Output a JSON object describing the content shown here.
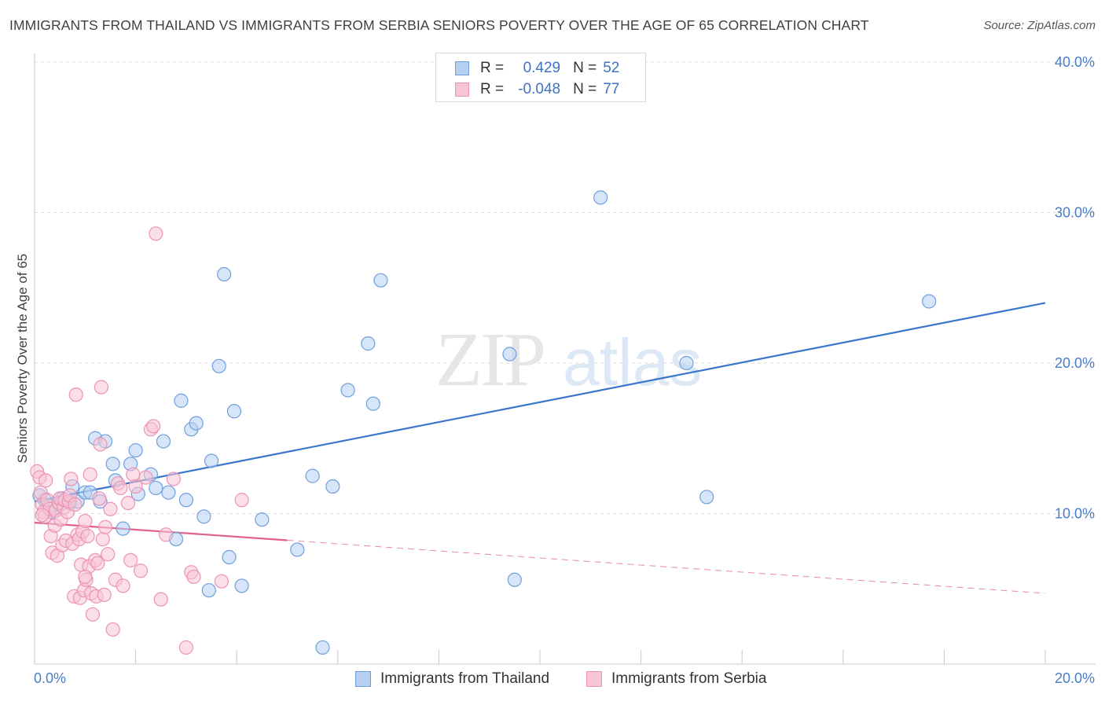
{
  "title": "IMMIGRANTS FROM THAILAND VS IMMIGRANTS FROM SERBIA SENIORS POVERTY OVER THE AGE OF 65 CORRELATION CHART",
  "source": "Source: ZipAtlas.com",
  "watermark": {
    "zip": "ZIP",
    "atlas": "atlas"
  },
  "legend": {
    "rows": [
      {
        "r_label": "R =",
        "r_value": "0.429",
        "n_label": "N =",
        "n_value": "52"
      },
      {
        "r_label": "R =",
        "r_value": "-0.048",
        "n_label": "N =",
        "n_value": "77"
      }
    ]
  },
  "colors": {
    "thailand_fill": "#b7d0f2",
    "thailand_stroke": "#6f9fdc",
    "thailand_line": "#3a76cc",
    "serbia_fill": "#f7c5d6",
    "serbia_stroke": "#ec93b2",
    "serbia_line": "#e0608e",
    "tick_label": "#4a7cc7",
    "grid": "#dcdcdc"
  },
  "chart_data": {
    "type": "scatter",
    "title": "IMMIGRANTS FROM THAILAND VS IMMIGRANTS FROM SERBIA SENIORS POVERTY OVER THE AGE OF 65 CORRELATION CHART",
    "xlabel": "",
    "ylabel": "Seniors Poverty Over the Age of 65",
    "xlim": [
      0,
      20
    ],
    "ylim": [
      0,
      40
    ],
    "x_ticks": [
      0,
      20
    ],
    "x_tick_labels": [
      "0.0%",
      "20.0%"
    ],
    "y_ticks": [
      10,
      20,
      30,
      40
    ],
    "y_tick_labels": [
      "10.0%",
      "20.0%",
      "30.0%",
      "40.0%"
    ],
    "grid": true,
    "legend_position": "top-center",
    "series": [
      {
        "name": "Immigrants from Thailand",
        "color": "#b7d0f2",
        "R": 0.429,
        "N": 52,
        "trend": {
          "x": [
            0,
            20
          ],
          "y": [
            10.8,
            24.0
          ],
          "solid_until": 20
        },
        "points": [
          {
            "x": 0.2,
            "y": 10.9
          },
          {
            "x": 0.3,
            "y": 10.5
          },
          {
            "x": 0.35,
            "y": 10.1
          },
          {
            "x": 0.5,
            "y": 10.6
          },
          {
            "x": 0.55,
            "y": 11.0
          },
          {
            "x": 0.7,
            "y": 10.7
          },
          {
            "x": 0.75,
            "y": 11.8
          },
          {
            "x": 0.85,
            "y": 10.8
          },
          {
            "x": 1.0,
            "y": 11.4
          },
          {
            "x": 1.1,
            "y": 11.4
          },
          {
            "x": 1.2,
            "y": 15.0
          },
          {
            "x": 1.3,
            "y": 10.8
          },
          {
            "x": 1.4,
            "y": 14.8
          },
          {
            "x": 1.55,
            "y": 13.3
          },
          {
            "x": 1.6,
            "y": 12.2
          },
          {
            "x": 1.75,
            "y": 9.0
          },
          {
            "x": 1.9,
            "y": 13.3
          },
          {
            "x": 2.0,
            "y": 14.2
          },
          {
            "x": 2.05,
            "y": 11.3
          },
          {
            "x": 2.3,
            "y": 12.6
          },
          {
            "x": 2.4,
            "y": 11.7
          },
          {
            "x": 2.55,
            "y": 14.8
          },
          {
            "x": 2.65,
            "y": 11.4
          },
          {
            "x": 2.8,
            "y": 8.3
          },
          {
            "x": 2.9,
            "y": 17.5
          },
          {
            "x": 3.0,
            "y": 10.9
          },
          {
            "x": 3.1,
            "y": 15.6
          },
          {
            "x": 3.2,
            "y": 16.0
          },
          {
            "x": 3.35,
            "y": 9.8
          },
          {
            "x": 3.45,
            "y": 4.9
          },
          {
            "x": 3.5,
            "y": 13.5
          },
          {
            "x": 3.65,
            "y": 19.8
          },
          {
            "x": 3.75,
            "y": 25.9
          },
          {
            "x": 3.85,
            "y": 7.1
          },
          {
            "x": 3.95,
            "y": 16.8
          },
          {
            "x": 4.1,
            "y": 5.2
          },
          {
            "x": 4.5,
            "y": 9.6
          },
          {
            "x": 5.2,
            "y": 7.6
          },
          {
            "x": 5.5,
            "y": 12.5
          },
          {
            "x": 5.7,
            "y": 1.1
          },
          {
            "x": 5.9,
            "y": 11.8
          },
          {
            "x": 6.2,
            "y": 18.2
          },
          {
            "x": 6.6,
            "y": 21.3
          },
          {
            "x": 6.7,
            "y": 17.3
          },
          {
            "x": 6.85,
            "y": 25.5
          },
          {
            "x": 9.4,
            "y": 20.6
          },
          {
            "x": 9.5,
            "y": 5.6
          },
          {
            "x": 11.2,
            "y": 31.0
          },
          {
            "x": 12.9,
            "y": 20.0
          },
          {
            "x": 13.3,
            "y": 11.1
          },
          {
            "x": 17.7,
            "y": 24.1
          },
          {
            "x": 0.1,
            "y": 11.2
          }
        ]
      },
      {
        "name": "Immigrants from Serbia",
        "color": "#f7c5d6",
        "R": -0.048,
        "N": 77,
        "trend": {
          "x": [
            0,
            20
          ],
          "y": [
            9.4,
            4.7
          ],
          "solid_until": 5
        },
        "points": [
          {
            "x": 0.05,
            "y": 12.8
          },
          {
            "x": 0.1,
            "y": 12.4
          },
          {
            "x": 0.12,
            "y": 11.4
          },
          {
            "x": 0.15,
            "y": 10.6
          },
          {
            "x": 0.18,
            "y": 10.1
          },
          {
            "x": 0.2,
            "y": 9.8
          },
          {
            "x": 0.22,
            "y": 12.2
          },
          {
            "x": 0.25,
            "y": 10.9
          },
          {
            "x": 0.3,
            "y": 10.3
          },
          {
            "x": 0.32,
            "y": 8.5
          },
          {
            "x": 0.35,
            "y": 7.4
          },
          {
            "x": 0.4,
            "y": 9.2
          },
          {
            "x": 0.42,
            "y": 10.2
          },
          {
            "x": 0.45,
            "y": 7.2
          },
          {
            "x": 0.48,
            "y": 10.7
          },
          {
            "x": 0.5,
            "y": 11.0
          },
          {
            "x": 0.52,
            "y": 9.6
          },
          {
            "x": 0.55,
            "y": 7.9
          },
          {
            "x": 0.58,
            "y": 10.4
          },
          {
            "x": 0.6,
            "y": 10.9
          },
          {
            "x": 0.62,
            "y": 8.2
          },
          {
            "x": 0.65,
            "y": 10.1
          },
          {
            "x": 0.68,
            "y": 10.8
          },
          {
            "x": 0.7,
            "y": 11.2
          },
          {
            "x": 0.72,
            "y": 12.3
          },
          {
            "x": 0.75,
            "y": 8.0
          },
          {
            "x": 0.78,
            "y": 4.5
          },
          {
            "x": 0.8,
            "y": 10.6
          },
          {
            "x": 0.82,
            "y": 17.9
          },
          {
            "x": 0.85,
            "y": 8.6
          },
          {
            "x": 0.88,
            "y": 8.3
          },
          {
            "x": 0.9,
            "y": 4.4
          },
          {
            "x": 0.92,
            "y": 6.6
          },
          {
            "x": 0.95,
            "y": 8.8
          },
          {
            "x": 0.98,
            "y": 4.9
          },
          {
            "x": 1.0,
            "y": 9.5
          },
          {
            "x": 1.02,
            "y": 5.6
          },
          {
            "x": 1.05,
            "y": 8.5
          },
          {
            "x": 1.08,
            "y": 6.5
          },
          {
            "x": 1.1,
            "y": 12.6
          },
          {
            "x": 1.12,
            "y": 4.7
          },
          {
            "x": 1.15,
            "y": 3.3
          },
          {
            "x": 1.2,
            "y": 6.9
          },
          {
            "x": 1.22,
            "y": 4.5
          },
          {
            "x": 1.25,
            "y": 6.7
          },
          {
            "x": 1.28,
            "y": 11.0
          },
          {
            "x": 1.3,
            "y": 14.6
          },
          {
            "x": 1.32,
            "y": 18.4
          },
          {
            "x": 1.35,
            "y": 8.3
          },
          {
            "x": 1.38,
            "y": 4.6
          },
          {
            "x": 1.4,
            "y": 9.1
          },
          {
            "x": 1.45,
            "y": 7.3
          },
          {
            "x": 1.5,
            "y": 10.3
          },
          {
            "x": 1.55,
            "y": 2.3
          },
          {
            "x": 1.6,
            "y": 5.6
          },
          {
            "x": 1.65,
            "y": 12.0
          },
          {
            "x": 1.7,
            "y": 11.7
          },
          {
            "x": 1.75,
            "y": 5.2
          },
          {
            "x": 1.85,
            "y": 10.7
          },
          {
            "x": 1.9,
            "y": 6.9
          },
          {
            "x": 1.95,
            "y": 12.6
          },
          {
            "x": 2.0,
            "y": 11.8
          },
          {
            "x": 2.1,
            "y": 6.2
          },
          {
            "x": 2.2,
            "y": 12.4
          },
          {
            "x": 2.3,
            "y": 15.6
          },
          {
            "x": 2.35,
            "y": 15.8
          },
          {
            "x": 2.4,
            "y": 28.6
          },
          {
            "x": 2.5,
            "y": 4.3
          },
          {
            "x": 2.6,
            "y": 8.6
          },
          {
            "x": 2.75,
            "y": 12.3
          },
          {
            "x": 3.0,
            "y": 1.1
          },
          {
            "x": 3.1,
            "y": 6.1
          },
          {
            "x": 3.15,
            "y": 5.8
          },
          {
            "x": 3.7,
            "y": 5.5
          },
          {
            "x": 4.1,
            "y": 10.9
          },
          {
            "x": 1.0,
            "y": 5.8
          },
          {
            "x": 0.15,
            "y": 9.9
          }
        ]
      }
    ]
  },
  "bottom_legend": [
    "Immigrants from Thailand",
    "Immigrants from Serbia"
  ]
}
